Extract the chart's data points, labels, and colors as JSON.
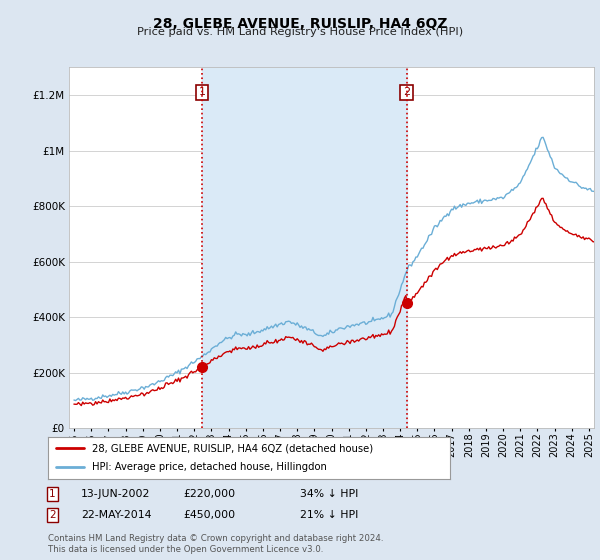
{
  "title": "28, GLEBE AVENUE, RUISLIP, HA4 6QZ",
  "subtitle": "Price paid vs. HM Land Registry's House Price Index (HPI)",
  "legend_line1": "28, GLEBE AVENUE, RUISLIP, HA4 6QZ (detached house)",
  "legend_line2": "HPI: Average price, detached house, Hillingdon",
  "transaction1_date": "13-JUN-2002",
  "transaction1_price": 220000,
  "transaction1_label": "34% ↓ HPI",
  "transaction2_date": "22-MAY-2014",
  "transaction2_price": 450000,
  "transaction2_label": "21% ↓ HPI",
  "footer": "Contains HM Land Registry data © Crown copyright and database right 2024.\nThis data is licensed under the Open Government Licence v3.0.",
  "hpi_color": "#6baed6",
  "price_color": "#cc0000",
  "background_color": "#dce6f1",
  "plot_bg_color": "#ffffff",
  "shade_color": "#daeaf7",
  "marker1_x": 2002.45,
  "marker2_x": 2014.39,
  "ylim_max": 1300000,
  "xlim_start": 1994.7,
  "xlim_end": 2025.3,
  "yticks": [
    0,
    200000,
    400000,
    600000,
    800000,
    1000000,
    1200000
  ],
  "ytick_labels": [
    "£0",
    "£200K",
    "£400K",
    "£600K",
    "£800K",
    "£1M",
    "£1.2M"
  ]
}
